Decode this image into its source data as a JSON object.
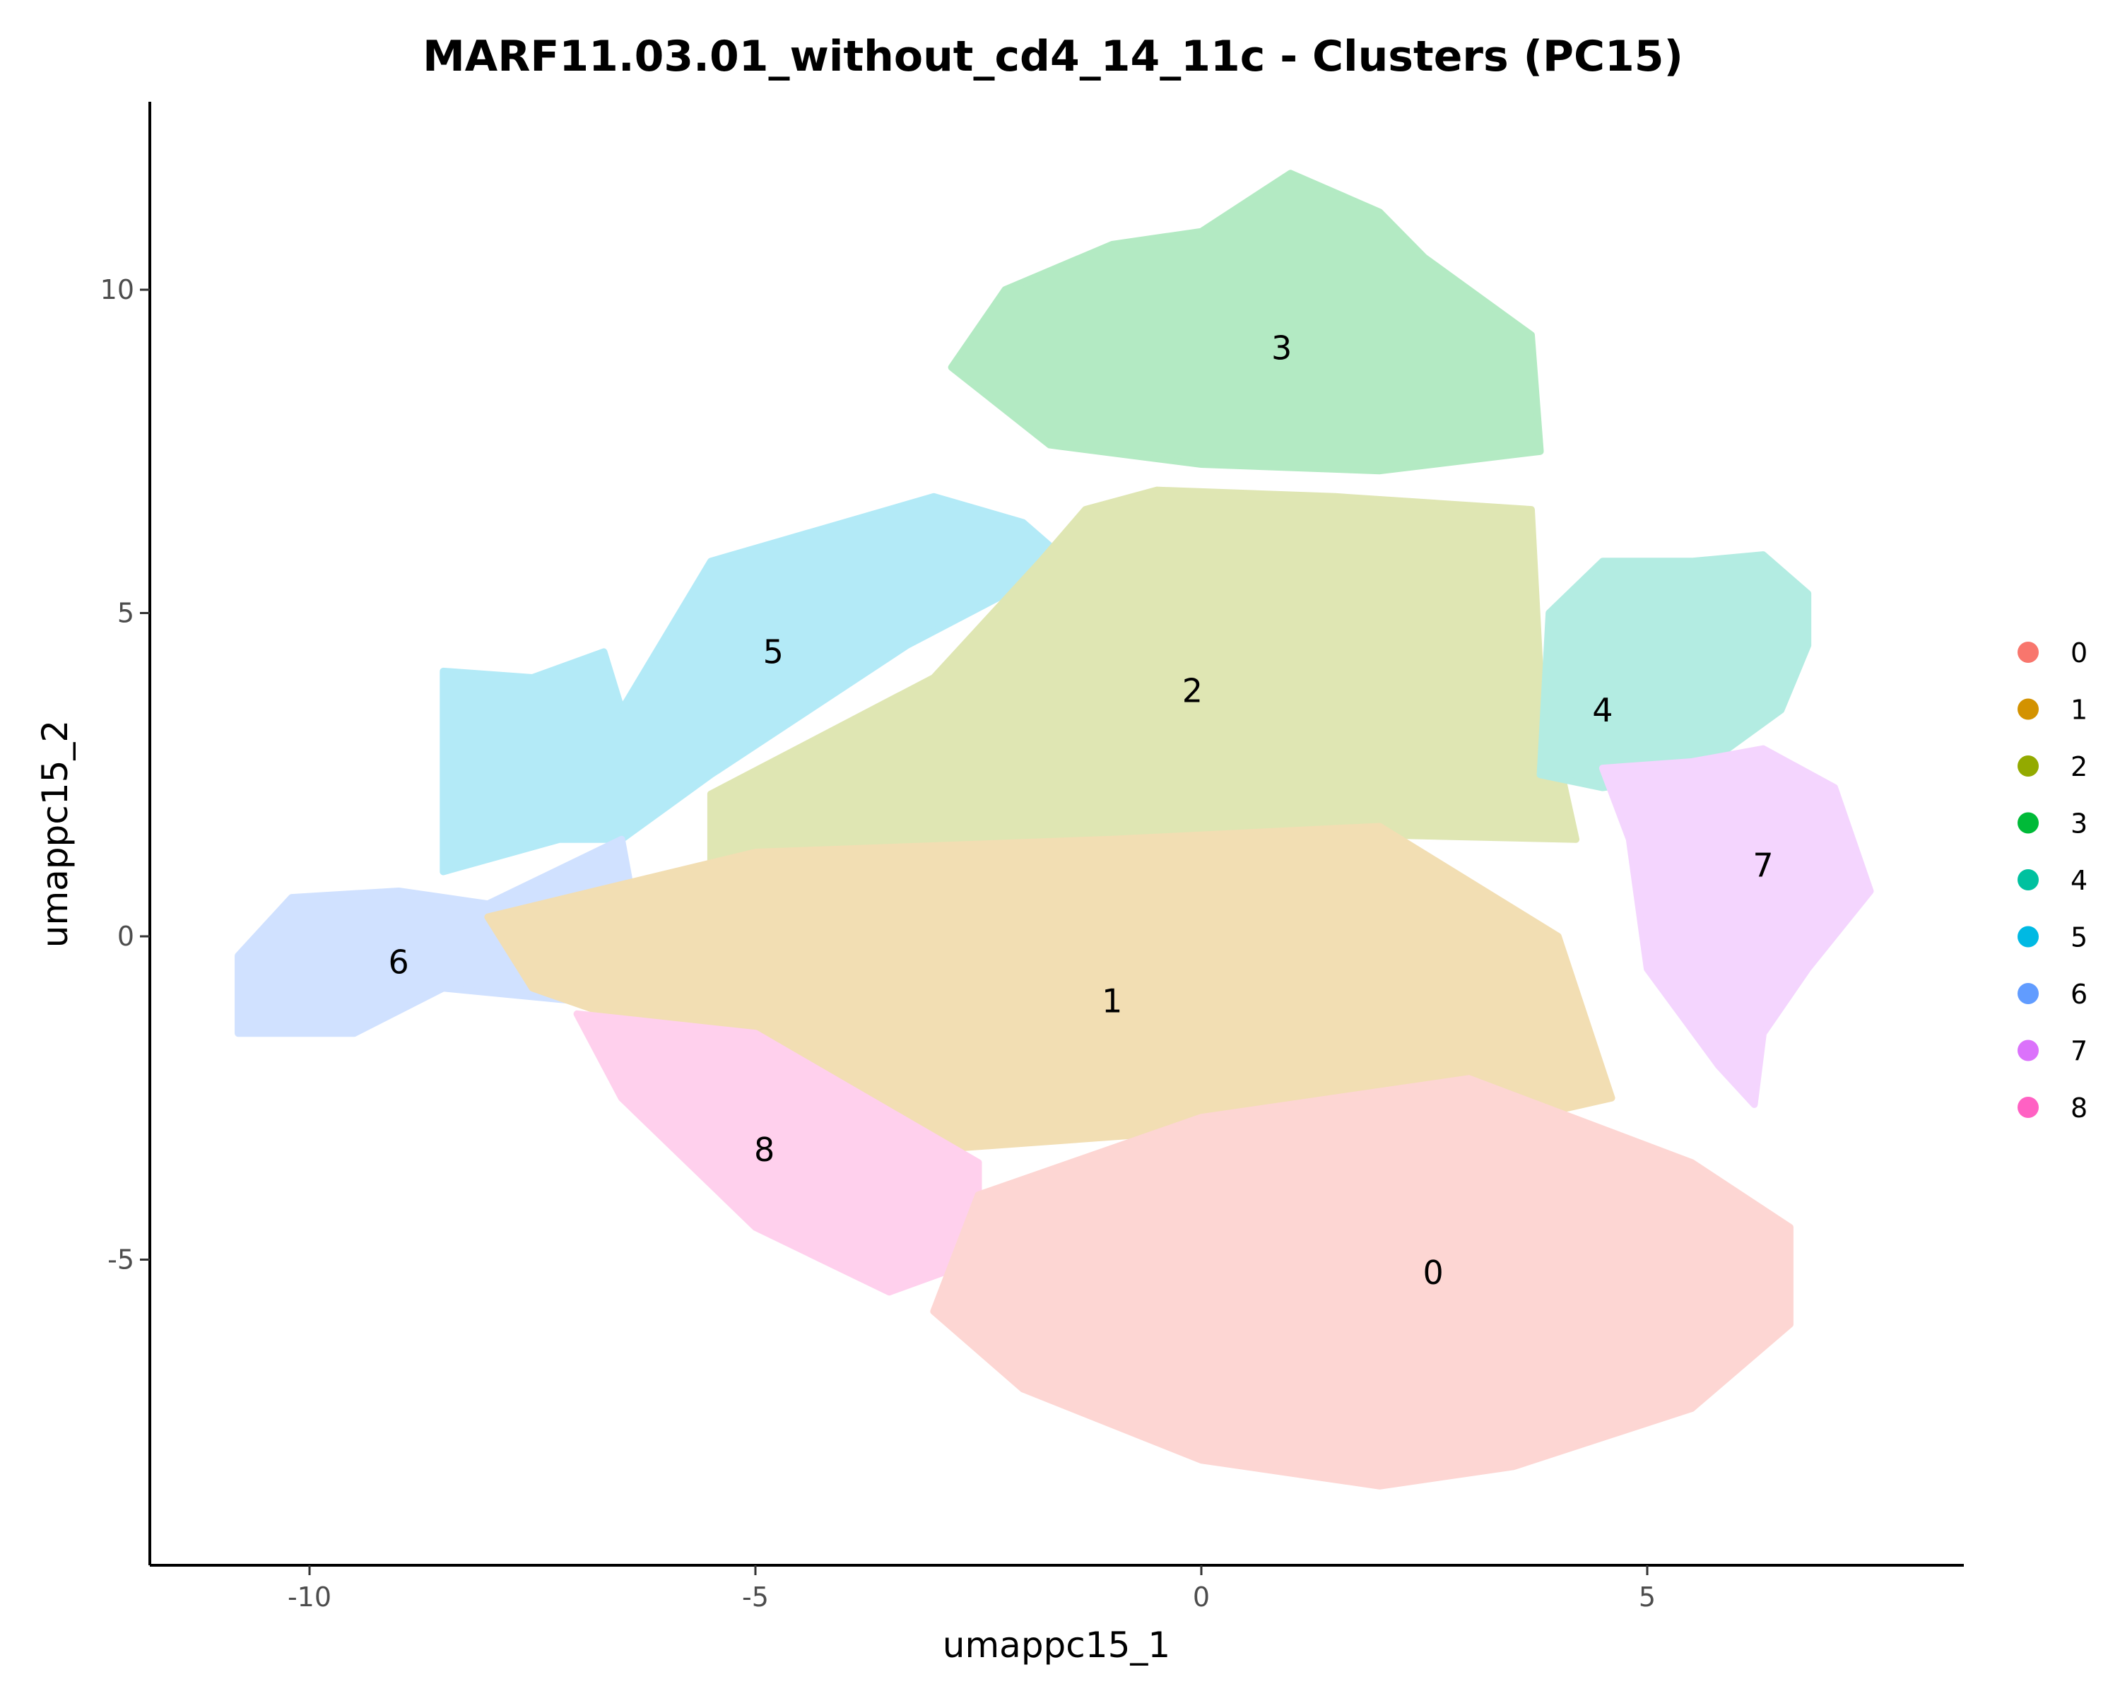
{
  "chart_data": {
    "type": "scatter",
    "title": "MARF11.03.01_without_cd4_14_11c - Clusters (PC15)",
    "xlabel": "umappc15_1",
    "ylabel": "umappc15_2",
    "xlim": [
      -12,
      8.5
    ],
    "ylim": [
      -9.5,
      12.8
    ],
    "xticks": [
      -10,
      -5,
      0,
      5
    ],
    "yticks": [
      -5,
      0,
      5,
      10
    ],
    "grid": false,
    "legend_placement": "right",
    "legend": [
      "0",
      "1",
      "2",
      "3",
      "4",
      "5",
      "6",
      "7",
      "8"
    ],
    "colors": [
      "#F8766D",
      "#D39200",
      "#93AA00",
      "#00BA38",
      "#00C19F",
      "#00B9E3",
      "#619CFF",
      "#DB72FB",
      "#FF61C3"
    ],
    "cluster_labels": [
      {
        "label": "0",
        "x": 2.6,
        "y": -5.2
      },
      {
        "label": "1",
        "x": -1.0,
        "y": -1.0
      },
      {
        "label": "2",
        "x": -0.1,
        "y": 3.8
      },
      {
        "label": "3",
        "x": 0.9,
        "y": 9.1
      },
      {
        "label": "4",
        "x": 4.5,
        "y": 3.5
      },
      {
        "label": "5",
        "x": -4.8,
        "y": 4.4
      },
      {
        "label": "6",
        "x": -9.0,
        "y": -0.4
      },
      {
        "label": "7",
        "x": 6.3,
        "y": 1.1
      },
      {
        "label": "8",
        "x": -4.9,
        "y": -3.3
      }
    ]
  }
}
